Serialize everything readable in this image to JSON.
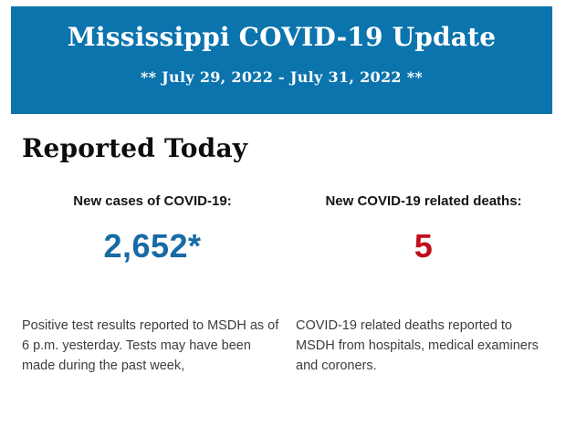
{
  "page": {
    "background_color": "#ffffff"
  },
  "banner": {
    "background_color": "#0b74ad",
    "text_color": "#ffffff",
    "title": "Mississippi COVID-19 Update",
    "subtitle": "** July 29, 2022 - July 31, 2022 **"
  },
  "report": {
    "heading": "Reported Today",
    "cases": {
      "label": "New cases of COVID-19:",
      "value": "2,652*",
      "value_color": "#176ba5",
      "description": "Positive test results reported to MSDH as of 6 p.m. yesterday. Tests may have been made during the past week,"
    },
    "deaths": {
      "label": "New COVID-19 related deaths:",
      "value": "5",
      "value_color": "#c20e1c",
      "description": "COVID-19 related deaths reported to MSDH from hospitals, medical examiners and coroners."
    }
  }
}
